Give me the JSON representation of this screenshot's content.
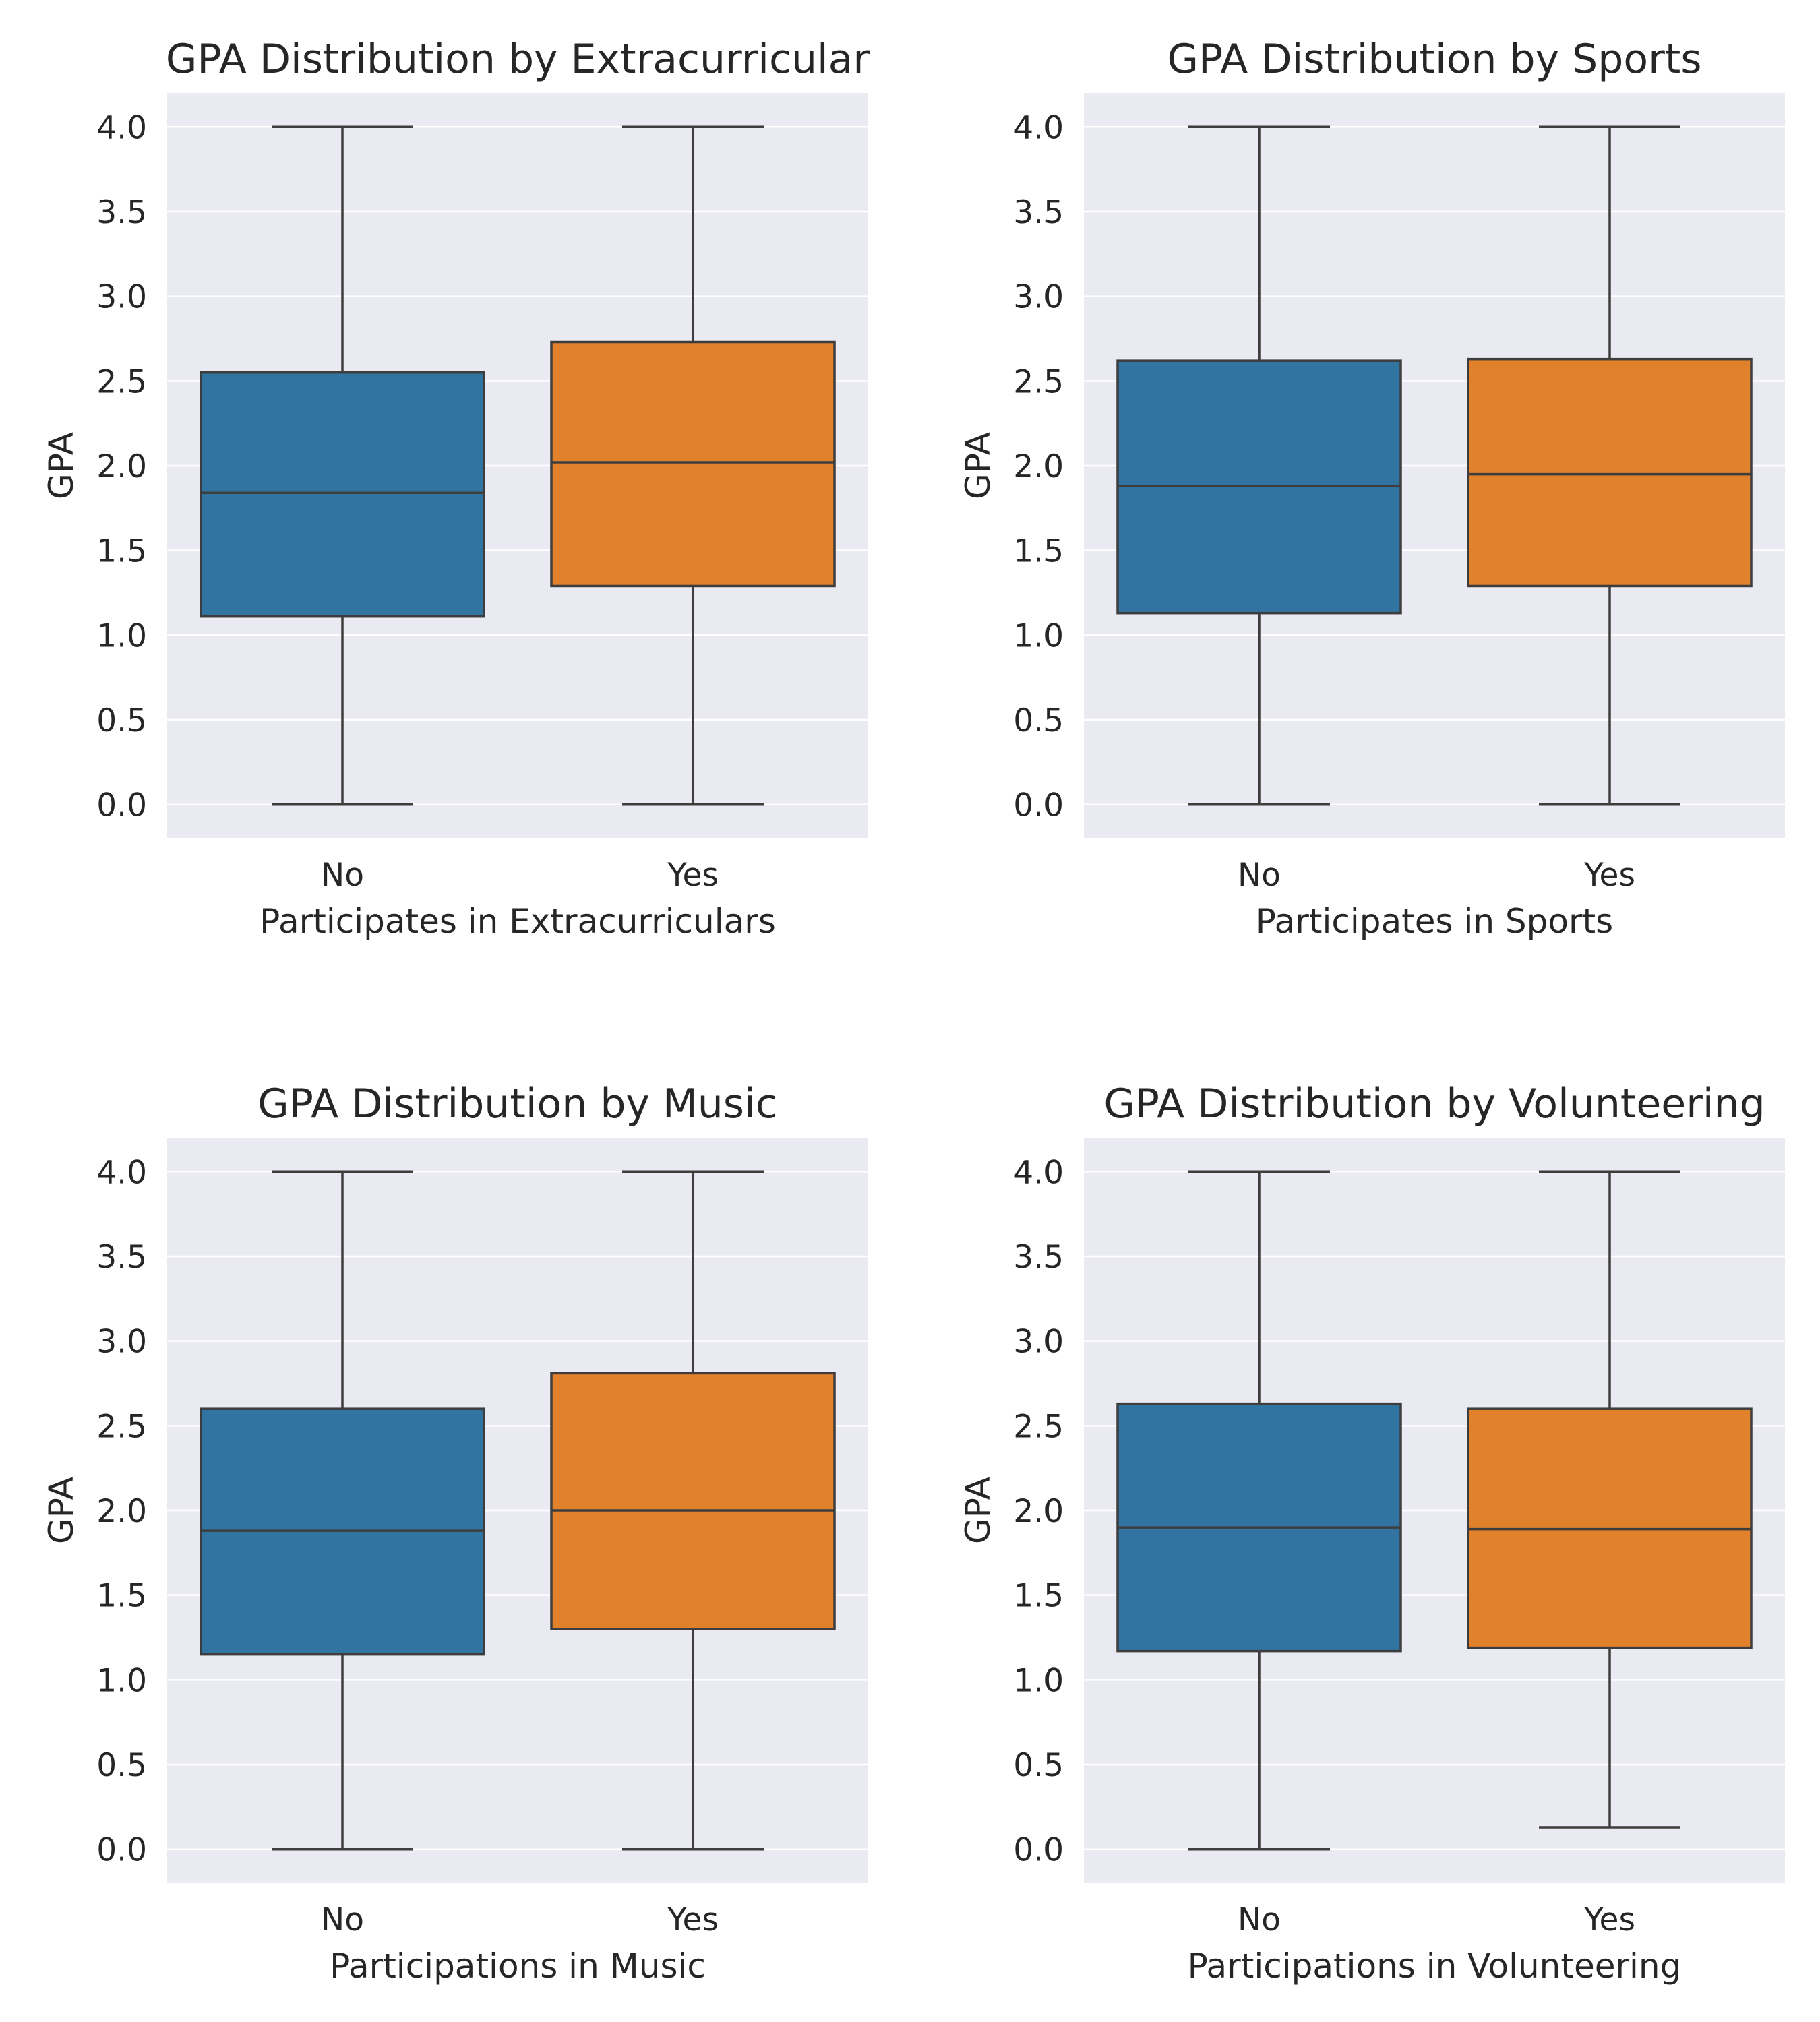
{
  "chart_data": [
    {
      "type": "box",
      "title": "GPA Distribution by Extracurricular",
      "xlabel": "Participates in Extracurriculars",
      "ylabel": "GPA",
      "ylim": [
        -0.2,
        4.2
      ],
      "yticks": [
        "0.0",
        "0.5",
        "1.0",
        "1.5",
        "2.0",
        "2.5",
        "3.0",
        "3.5",
        "4.0"
      ],
      "categories": [
        "No",
        "Yes"
      ],
      "boxes": [
        {
          "category": "No",
          "min": 0.0,
          "q1": 1.11,
          "median": 1.84,
          "q3": 2.55,
          "max": 4.0,
          "color": "#3274a1"
        },
        {
          "category": "Yes",
          "min": 0.0,
          "q1": 1.29,
          "median": 2.02,
          "q3": 2.73,
          "max": 4.0,
          "color": "#e1812c"
        }
      ],
      "grid": true
    },
    {
      "type": "box",
      "title": "GPA Distribution by Sports",
      "xlabel": "Participates in Sports",
      "ylabel": "GPA",
      "ylim": [
        -0.2,
        4.2
      ],
      "yticks": [
        "0.0",
        "0.5",
        "1.0",
        "1.5",
        "2.0",
        "2.5",
        "3.0",
        "3.5",
        "4.0"
      ],
      "categories": [
        "No",
        "Yes"
      ],
      "boxes": [
        {
          "category": "No",
          "min": 0.0,
          "q1": 1.13,
          "median": 1.88,
          "q3": 2.62,
          "max": 4.0,
          "color": "#3274a1"
        },
        {
          "category": "Yes",
          "min": 0.0,
          "q1": 1.29,
          "median": 1.95,
          "q3": 2.63,
          "max": 4.0,
          "color": "#e1812c"
        }
      ],
      "grid": true
    },
    {
      "type": "box",
      "title": "GPA Distribution by Music",
      "xlabel": "Participations in Music",
      "ylabel": "GPA",
      "ylim": [
        -0.2,
        4.2
      ],
      "yticks": [
        "0.0",
        "0.5",
        "1.0",
        "1.5",
        "2.0",
        "2.5",
        "3.0",
        "3.5",
        "4.0"
      ],
      "categories": [
        "No",
        "Yes"
      ],
      "boxes": [
        {
          "category": "No",
          "min": 0.0,
          "q1": 1.15,
          "median": 1.88,
          "q3": 2.6,
          "max": 4.0,
          "color": "#3274a1"
        },
        {
          "category": "Yes",
          "min": 0.0,
          "q1": 1.3,
          "median": 2.0,
          "q3": 2.81,
          "max": 4.0,
          "color": "#e1812c"
        }
      ],
      "grid": true
    },
    {
      "type": "box",
      "title": "GPA Distribution by Volunteering",
      "xlabel": "Participations in Volunteering",
      "ylabel": "GPA",
      "ylim": [
        -0.2,
        4.2
      ],
      "yticks": [
        "0.0",
        "0.5",
        "1.0",
        "1.5",
        "2.0",
        "2.5",
        "3.0",
        "3.5",
        "4.0"
      ],
      "categories": [
        "No",
        "Yes"
      ],
      "boxes": [
        {
          "category": "No",
          "min": 0.0,
          "q1": 1.17,
          "median": 1.9,
          "q3": 2.63,
          "max": 4.0,
          "color": "#3274a1"
        },
        {
          "category": "Yes",
          "min": 0.13,
          "q1": 1.19,
          "median": 1.89,
          "q3": 2.6,
          "max": 4.0,
          "color": "#e1812c"
        }
      ],
      "grid": true
    }
  ],
  "style": {
    "plot_background": "#eaeaf2",
    "grid_color": "#ffffff",
    "line_color": "#3d3d3d",
    "text_color": "#262626"
  }
}
